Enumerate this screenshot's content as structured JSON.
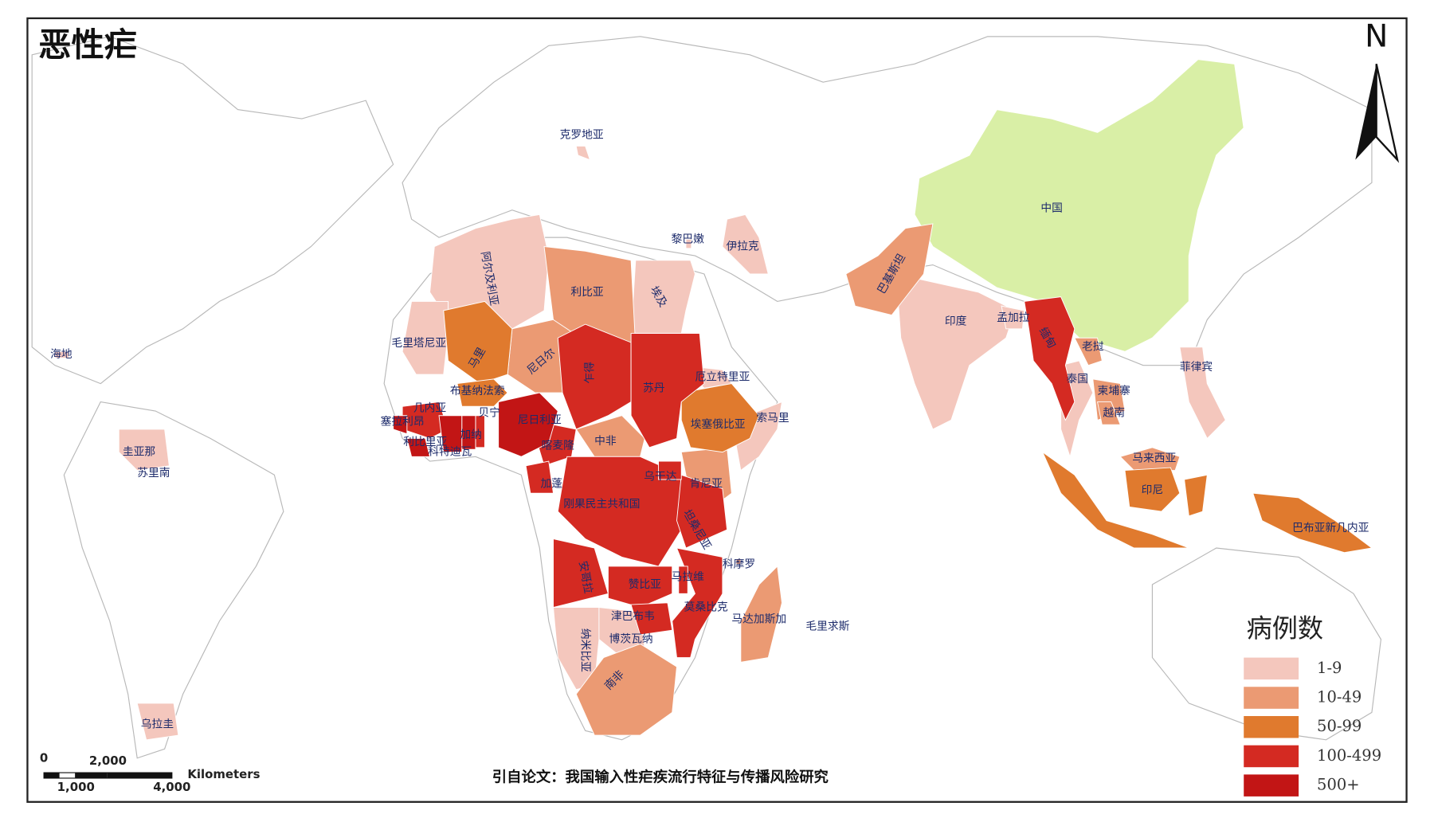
{
  "title": "恶性疟",
  "north": "N",
  "legend": {
    "title": "病例数",
    "items": [
      {
        "label": "1-9",
        "color": "#f4c7bd",
        "countries": [
          "阿尔及利亚",
          "埃及",
          "伊拉克",
          "毛里塔尼亚",
          "索马里",
          "纳米比亚",
          "博茨瓦纳",
          "印度",
          "孟加拉",
          "泰国",
          "菲律宾",
          "圭亚那",
          "苏里南",
          "乌拉圭",
          "海地",
          "克罗地亚",
          "黎巴嫩",
          "毛里求斯",
          "厄立特里亚"
        ]
      },
      {
        "label": "10-49",
        "color": "#eb9a73",
        "countries": [
          "利比亚",
          "尼日尔",
          "中非",
          "肯尼亚",
          "马达加斯加",
          "南非",
          "巴基斯坦",
          "马来西亚",
          "老挝",
          "柬埔寨",
          "越南",
          "科摩罗"
        ]
      },
      {
        "label": "50-99",
        "color": "#e07a2e",
        "countries": [
          "马里",
          "埃塞俄比亚",
          "印尼",
          "巴布亚新几内亚",
          "布基纳法索"
        ]
      },
      {
        "label": "100-499",
        "color": "#d42a22",
        "countries": [
          "乍得",
          "苏丹",
          "喀麦隆",
          "刚果民主共和国",
          "安哥拉",
          "赞比亚",
          "坦桑尼亚",
          "莫桑比克",
          "缅甸",
          "几内亚",
          "贝宁",
          "加蓬",
          "乌干达",
          "津巴布韦",
          "马拉维"
        ]
      },
      {
        "label": "500+",
        "color": "#c21515",
        "countries": [
          "尼日利亚",
          "利比里亚",
          "塞拉利昂",
          "加纳",
          "科特迪瓦"
        ]
      }
    ]
  },
  "other": {
    "color": "#d9efa6",
    "countries": [
      "中国"
    ]
  },
  "scale_bar": {
    "top": [
      "0",
      "2,000"
    ],
    "bottom": [
      "1,000",
      "4,000"
    ],
    "unit": "Kilometers"
  },
  "source": "引自论文：我国输入性疟疾流行特征与传播风险研究"
}
